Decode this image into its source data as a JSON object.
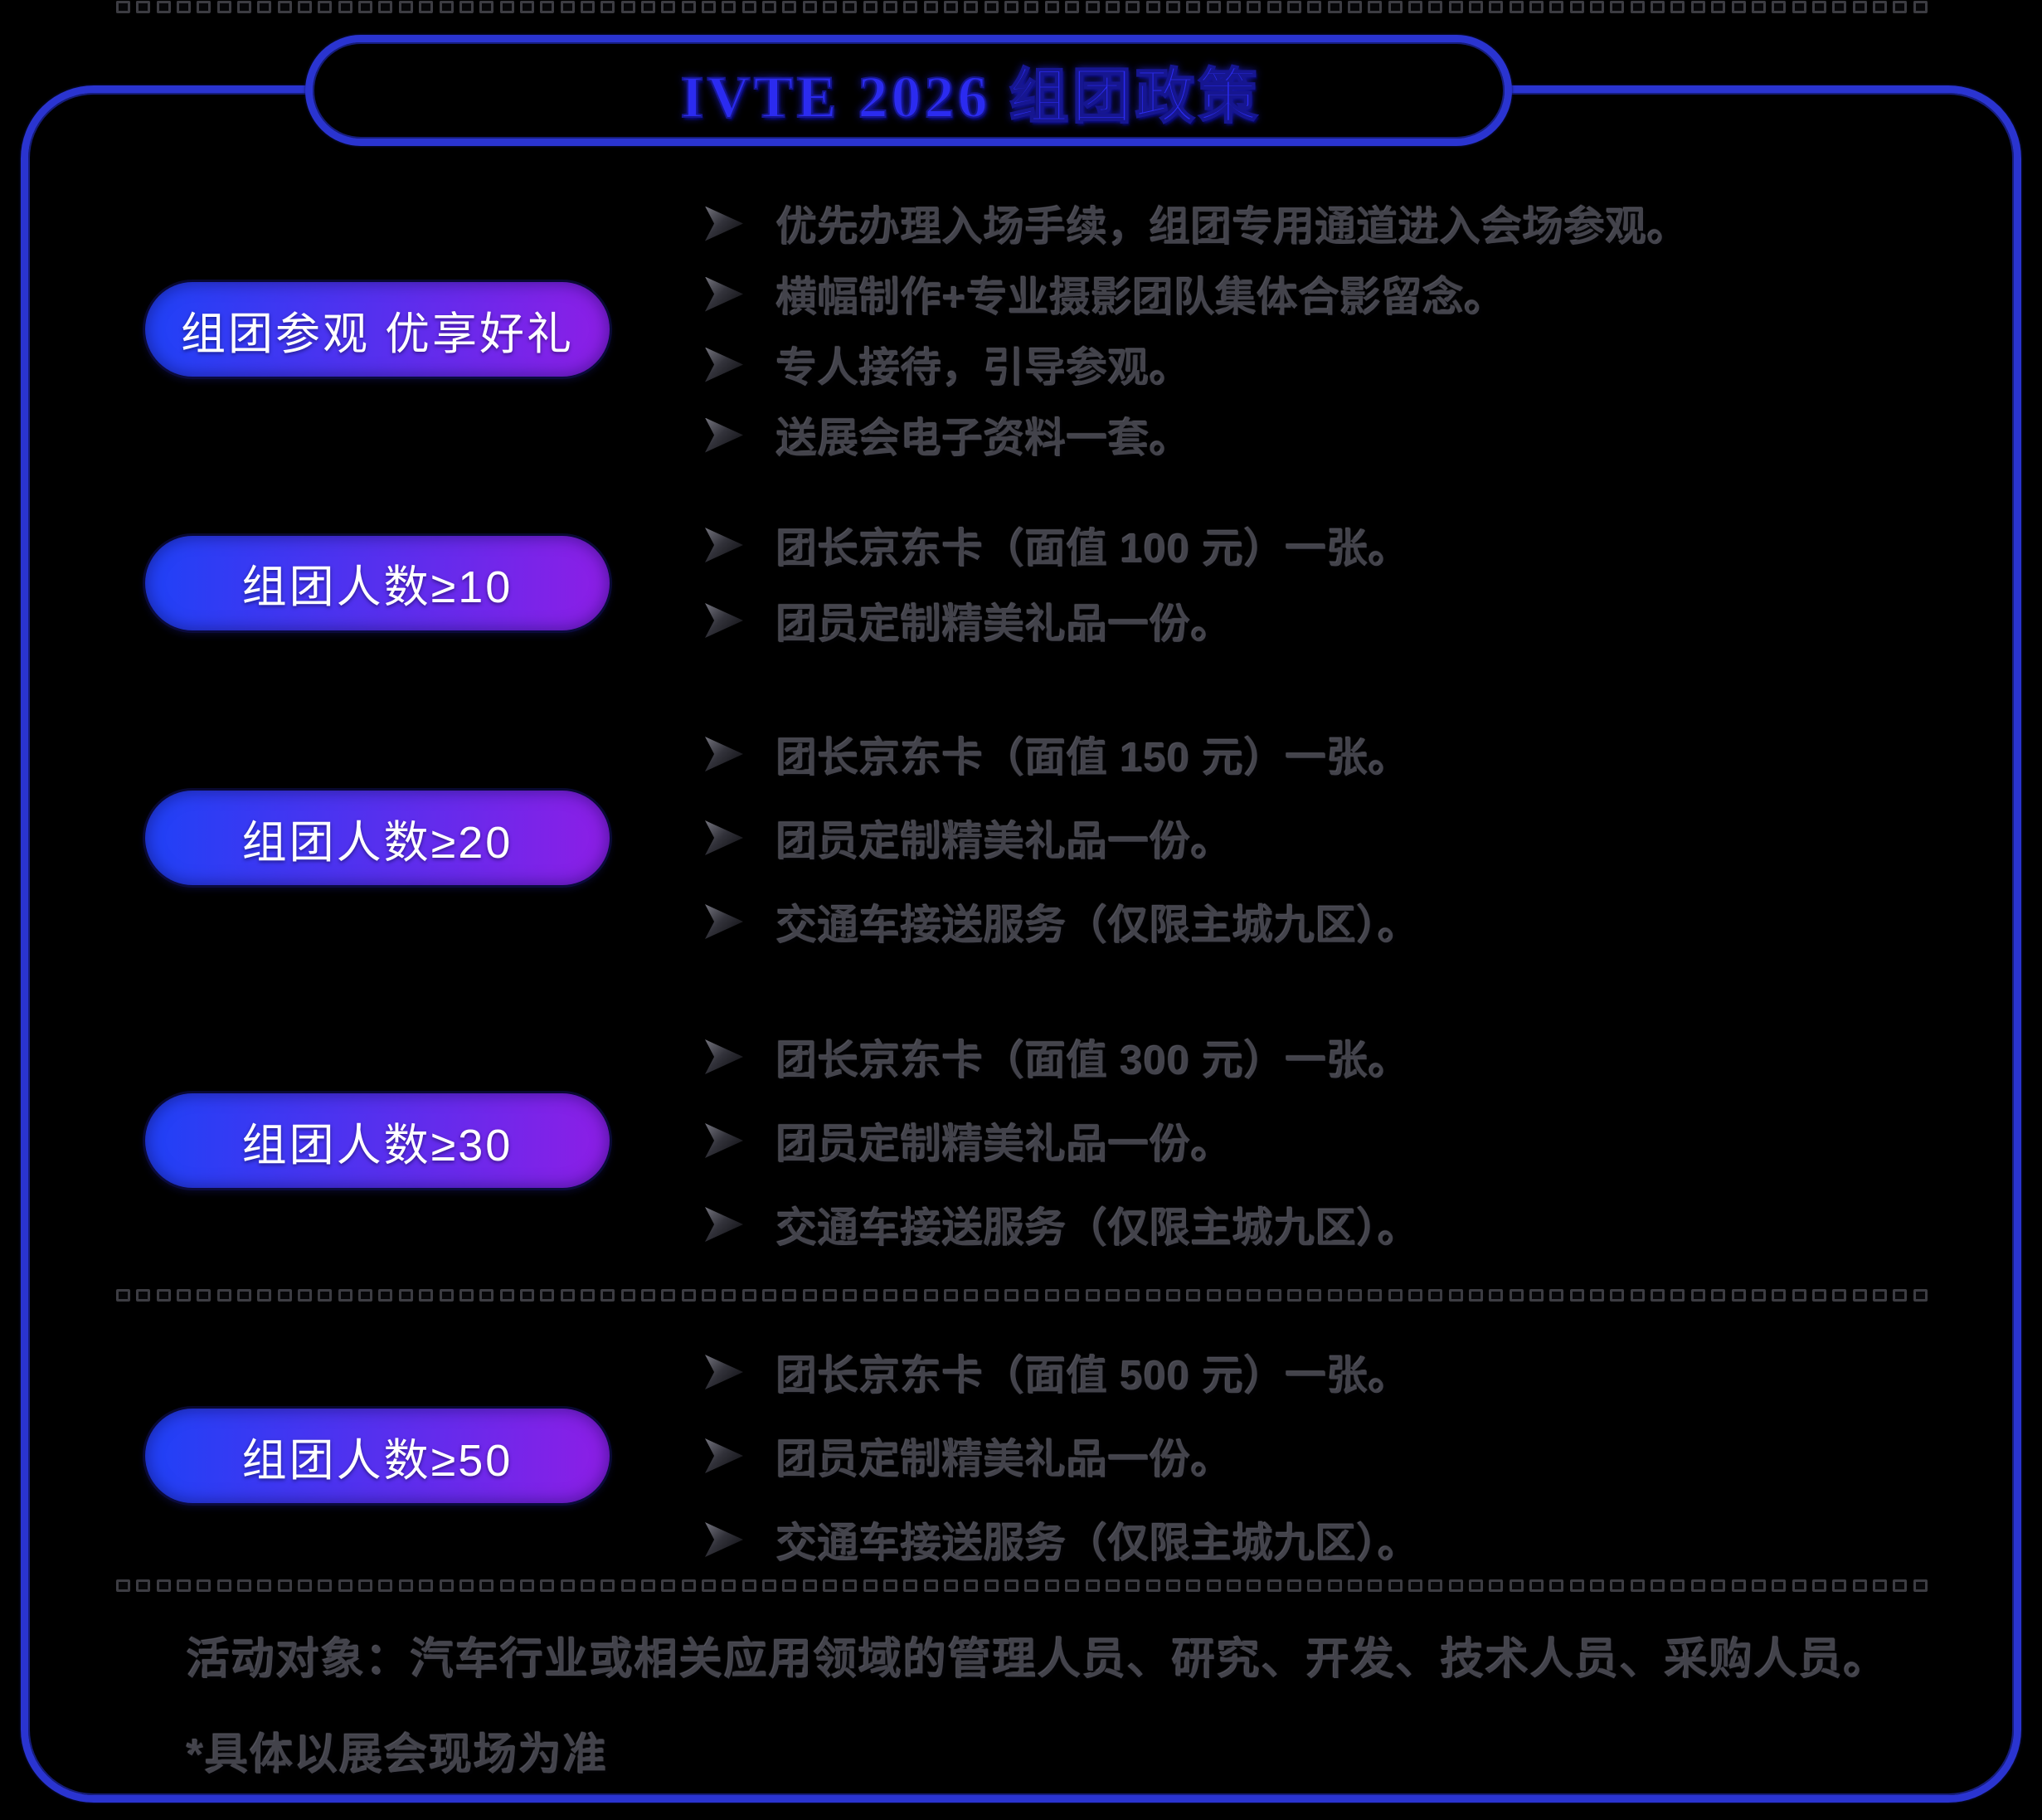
{
  "title": "IVTE 2026 组团政策",
  "sections": [
    {
      "pill": "组团参观 优享好礼",
      "items": [
        "优先办理入场手续，组团专用通道进入会场参观。",
        "横幅制作+专业摄影团队集体合影留念。",
        "专人接待，引导参观。",
        "送展会电子资料一套。"
      ]
    },
    {
      "pill": "组团人数≥10",
      "items": [
        "团长京东卡（面值 100 元）一张。",
        "团员定制精美礼品一份。"
      ]
    },
    {
      "pill": "组团人数≥20",
      "items": [
        "团长京东卡（面值 150 元）一张。",
        "团员定制精美礼品一份。",
        "交通车接送服务（仅限主城九区）。"
      ]
    },
    {
      "pill": "组团人数≥30",
      "items": [
        "团长京东卡（面值 300 元）一张。",
        "团员定制精美礼品一份。",
        "交通车接送服务（仅限主城九区）。"
      ]
    },
    {
      "pill": "组团人数≥50",
      "items": [
        "团长京东卡（面值 500 元）一张。",
        "团员定制精美礼品一份。",
        "交通车接送服务（仅限主城九区）。"
      ]
    }
  ],
  "footer": {
    "line1": "活动对象：汽车行业或相关应用领域的管理人员、研究、开发、技术人员、采购人员。",
    "line2": "*具体以展会现场为准"
  },
  "icons": {
    "bullet": "arrowhead-right-icon"
  },
  "colors": {
    "accent_blue": "#2a34d0",
    "title_blue": "#2b2bf0",
    "pill_gradient_start": "#2340f6",
    "pill_gradient_end": "#8a1fe6",
    "pill_text": "#ffffff",
    "body_text": "#43434b",
    "divider": "#3c3c42",
    "background": "#000000"
  }
}
